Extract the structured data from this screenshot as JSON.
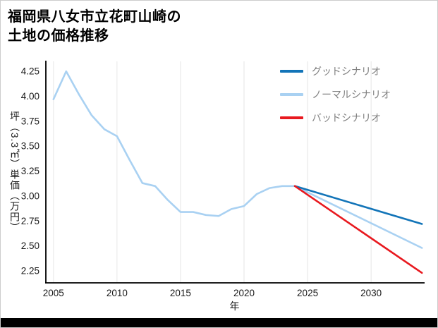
{
  "title": {
    "line1": "福岡県八女市立花町山崎の",
    "line2": "土地の価格推移"
  },
  "colors": {
    "good_scenario": "#1274b8",
    "normal_scenario": "#a9d1f2",
    "bad_scenario": "#e8191f",
    "grid": "#e6e6e6",
    "axis": "#000000",
    "legend_text": "#808080",
    "bottom_bar": "#000000"
  },
  "chart_data": {
    "type": "line",
    "title": "福岡県八女市立花町山崎の土地の価格推移",
    "xlabel": "年",
    "ylabel": "坪（3.3㎡）単価（万円）",
    "xlim": [
      2004.4,
      2034.1
    ],
    "ylim": [
      2.13,
      4.35
    ],
    "x_ticks": [
      "2005",
      "2010",
      "2015",
      "2020",
      "2025",
      "2030"
    ],
    "y_ticks": [
      "2.25",
      "2.50",
      "2.75",
      "3.00",
      "3.25",
      "3.50",
      "3.75",
      "4.00",
      "4.25"
    ],
    "grid": "vertical-only",
    "legend_position": "upper-right",
    "series": [
      {
        "name": "グッドシナリオ",
        "color": "#1274b8",
        "x": [
          2024,
          2034
        ],
        "y": [
          3.1,
          2.72
        ]
      },
      {
        "name": "ノーマルシナリオ",
        "color": "#a9d1f2",
        "x": [
          2005,
          2006,
          2007,
          2008,
          2009,
          2010,
          2011,
          2012,
          2013,
          2014,
          2015,
          2016,
          2017,
          2018,
          2019,
          2020,
          2021,
          2022,
          2023,
          2024,
          2034
        ],
        "y": [
          3.97,
          4.25,
          4.02,
          3.81,
          3.67,
          3.6,
          3.36,
          3.13,
          3.1,
          2.96,
          2.84,
          2.84,
          2.81,
          2.8,
          2.87,
          2.9,
          3.02,
          3.08,
          3.1,
          3.1,
          2.48
        ]
      },
      {
        "name": "バッドシナリオ",
        "color": "#e8191f",
        "x": [
          2024,
          2034
        ],
        "y": [
          3.1,
          2.23
        ]
      }
    ]
  }
}
